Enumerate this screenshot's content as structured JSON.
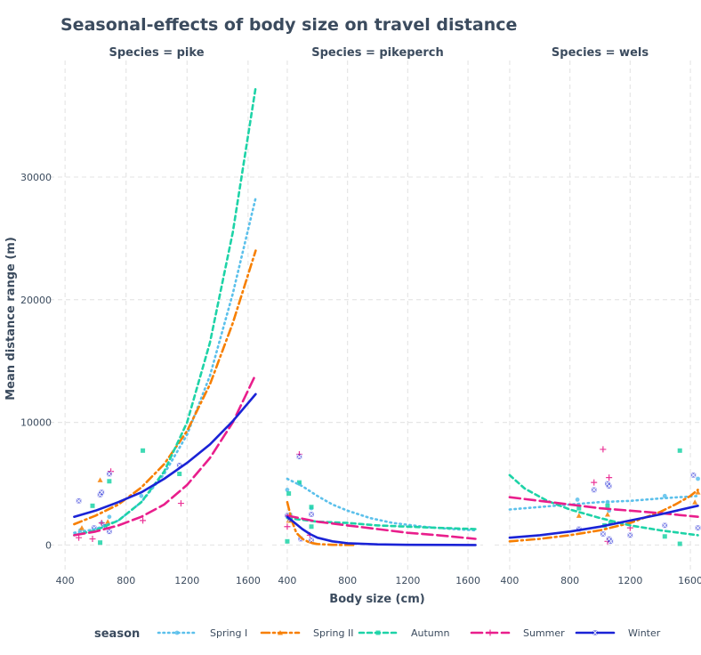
{
  "chart_data": {
    "type": "line",
    "title": "Seasonal-effects of body size on travel distance",
    "xlabel": "Body size (cm)",
    "ylabel": "Mean distance range (m)",
    "xlim": [
      300,
      1700
    ],
    "ylim": [
      -2000,
      39500
    ],
    "xticks": [
      400,
      800,
      1200,
      1600
    ],
    "yticks": [
      0,
      10000,
      20000,
      30000
    ],
    "facet_prefix": "Species = ",
    "legend_title": "season",
    "legend_position": "bottom",
    "seasons": [
      {
        "name": "Spring I",
        "color": "#5bc0eb",
        "dash": "1.5,4",
        "marker": "circle"
      },
      {
        "name": "Spring II",
        "color": "#f77f00",
        "dash": "9,4,2,4",
        "marker": "triangle"
      },
      {
        "name": "Autumn",
        "color": "#1dd3a7",
        "dash": "5,4",
        "marker": "square"
      },
      {
        "name": "Summer",
        "color": "#e91e8c",
        "dash": "12,5",
        "marker": "plus"
      },
      {
        "name": "Winter",
        "color": "#1a23d6",
        "dash": "",
        "marker": "xsquare"
      }
    ],
    "facets": [
      {
        "species": "pike",
        "curves": {
          "Spring I": {
            "x": [
              460,
              600,
              750,
              900,
              1050,
              1200,
              1350,
              1500,
              1650
            ],
            "y": [
              1000,
              1300,
              2000,
              3500,
              5800,
              9000,
              13800,
              20500,
              28300
            ]
          },
          "Spring II": {
            "x": [
              460,
              600,
              750,
              900,
              1050,
              1200,
              1350,
              1500,
              1650
            ],
            "y": [
              1700,
              2400,
              3300,
              4700,
              6600,
              9300,
              13100,
              18100,
              24000
            ]
          },
          "Autumn": {
            "x": [
              460,
              600,
              750,
              900,
              1050,
              1200,
              1350,
              1500,
              1650
            ],
            "y": [
              800,
              1200,
              2000,
              3500,
              6000,
              10000,
              16500,
              25500,
              37300
            ]
          },
          "Summer": {
            "x": [
              460,
              600,
              750,
              900,
              1050,
              1200,
              1350,
              1500,
              1650
            ],
            "y": [
              800,
              1100,
              1600,
              2300,
              3300,
              4900,
              7100,
              10000,
              13900
            ]
          },
          "Winter": {
            "x": [
              460,
              600,
              750,
              900,
              1050,
              1200,
              1350,
              1500,
              1650
            ],
            "y": [
              2300,
              2800,
              3500,
              4300,
              5400,
              6700,
              8200,
              10100,
              12300
            ]
          }
        },
        "points": [
          {
            "season": "Spring I",
            "x": 500,
            "y": 1200
          },
          {
            "season": "Spring I",
            "x": 640,
            "y": 1800
          },
          {
            "season": "Spring I",
            "x": 690,
            "y": 2300
          },
          {
            "season": "Spring I",
            "x": 900,
            "y": 4000
          },
          {
            "season": "Spring II",
            "x": 510,
            "y": 1400
          },
          {
            "season": "Spring II",
            "x": 630,
            "y": 5300
          },
          {
            "season": "Spring II",
            "x": 680,
            "y": 1900
          },
          {
            "season": "Autumn",
            "x": 580,
            "y": 3200
          },
          {
            "season": "Autumn",
            "x": 630,
            "y": 200
          },
          {
            "season": "Autumn",
            "x": 660,
            "y": 1500
          },
          {
            "season": "Autumn",
            "x": 690,
            "y": 5200
          },
          {
            "season": "Autumn",
            "x": 910,
            "y": 7700
          },
          {
            "season": "Autumn",
            "x": 1150,
            "y": 5800
          },
          {
            "season": "Summer",
            "x": 490,
            "y": 600
          },
          {
            "season": "Summer",
            "x": 580,
            "y": 500
          },
          {
            "season": "Summer",
            "x": 640,
            "y": 1800
          },
          {
            "season": "Summer",
            "x": 700,
            "y": 6000
          },
          {
            "season": "Summer",
            "x": 910,
            "y": 2000
          },
          {
            "season": "Summer",
            "x": 1160,
            "y": 3400
          },
          {
            "season": "Winter",
            "x": 490,
            "y": 3600
          },
          {
            "season": "Winter",
            "x": 590,
            "y": 1400
          },
          {
            "season": "Winter",
            "x": 630,
            "y": 4100
          },
          {
            "season": "Winter",
            "x": 640,
            "y": 4300
          },
          {
            "season": "Winter",
            "x": 660,
            "y": 1500
          },
          {
            "season": "Winter",
            "x": 690,
            "y": 5800
          },
          {
            "season": "Winter",
            "x": 690,
            "y": 1100
          },
          {
            "season": "Winter",
            "x": 1150,
            "y": 6500
          }
        ]
      },
      {
        "species": "pikeperch",
        "curves": {
          "Spring I": {
            "x": [
              400,
              500,
              600,
              700,
              800,
              950,
              1100,
              1300,
              1500,
              1650
            ],
            "y": [
              5400,
              4800,
              4000,
              3300,
              2800,
              2200,
              1800,
              1500,
              1300,
              1200
            ]
          },
          "Spring II": {
            "x": [
              400,
              430,
              460,
              500,
              550,
              600,
              700,
              850
            ],
            "y": [
              3500,
              2000,
              1000,
              500,
              200,
              80,
              20,
              0
            ]
          },
          "Autumn": {
            "x": [
              400,
              600,
              800,
              1000,
              1200,
              1400,
              1650
            ],
            "y": [
              2200,
              1900,
              1800,
              1600,
              1500,
              1400,
              1300
            ]
          },
          "Summer": {
            "x": [
              400,
              600,
              800,
              1000,
              1200,
              1400,
              1650
            ],
            "y": [
              2400,
              1900,
              1600,
              1300,
              1000,
              800,
              500
            ]
          },
          "Winter": {
            "x": [
              400,
              450,
              500,
              550,
              600,
              700,
              800,
              1000,
              1200,
              1650
            ],
            "y": [
              2300,
              1800,
              1300,
              900,
              600,
              300,
              150,
              50,
              20,
              0
            ]
          }
        },
        "points": [
          {
            "season": "Spring I",
            "x": 400,
            "y": 4500
          },
          {
            "season": "Spring I",
            "x": 420,
            "y": 2500
          },
          {
            "season": "Spring I",
            "x": 480,
            "y": 5000
          },
          {
            "season": "Spring I",
            "x": 560,
            "y": 3000
          },
          {
            "season": "Spring II",
            "x": 410,
            "y": 2000
          },
          {
            "season": "Spring II",
            "x": 560,
            "y": 300
          },
          {
            "season": "Autumn",
            "x": 400,
            "y": 300
          },
          {
            "season": "Autumn",
            "x": 410,
            "y": 4200
          },
          {
            "season": "Autumn",
            "x": 480,
            "y": 5100
          },
          {
            "season": "Autumn",
            "x": 560,
            "y": 3100
          },
          {
            "season": "Autumn",
            "x": 560,
            "y": 1500
          },
          {
            "season": "Summer",
            "x": 400,
            "y": 1500
          },
          {
            "season": "Summer",
            "x": 480,
            "y": 7400
          },
          {
            "season": "Summer",
            "x": 550,
            "y": 800
          },
          {
            "season": "Winter",
            "x": 400,
            "y": 2400
          },
          {
            "season": "Winter",
            "x": 420,
            "y": 2100
          },
          {
            "season": "Winter",
            "x": 480,
            "y": 7200
          },
          {
            "season": "Winter",
            "x": 490,
            "y": 500
          },
          {
            "season": "Winter",
            "x": 560,
            "y": 2500
          },
          {
            "season": "Winter",
            "x": 560,
            "y": 400
          }
        ]
      },
      {
        "species": "wels",
        "curves": {
          "Spring I": {
            "x": [
              400,
              600,
              800,
              1000,
              1200,
              1400,
              1650
            ],
            "y": [
              2900,
              3100,
              3300,
              3500,
              3600,
              3800,
              4000
            ]
          },
          "Spring II": {
            "x": [
              400,
              600,
              800,
              1000,
              1200,
              1400,
              1500,
              1600,
              1650
            ],
            "y": [
              300,
              500,
              800,
              1200,
              1800,
              2700,
              3300,
              4000,
              4500
            ]
          },
          "Autumn": {
            "x": [
              400,
              500,
              650,
              800,
              1000,
              1200,
              1400,
              1650
            ],
            "y": [
              5700,
              4600,
              3600,
              2900,
              2200,
              1600,
              1200,
              800
            ]
          },
          "Summer": {
            "x": [
              400,
              600,
              800,
              1000,
              1200,
              1400,
              1650
            ],
            "y": [
              3900,
              3600,
              3300,
              3000,
              2800,
              2600,
              2300
            ]
          },
          "Winter": {
            "x": [
              400,
              600,
              800,
              1000,
              1200,
              1400,
              1650
            ],
            "y": [
              600,
              800,
              1100,
              1500,
              2000,
              2500,
              3200
            ]
          }
        },
        "points": [
          {
            "season": "Spring I",
            "x": 850,
            "y": 3700
          },
          {
            "season": "Spring I",
            "x": 1050,
            "y": 3500
          },
          {
            "season": "Spring I",
            "x": 1060,
            "y": 2800
          },
          {
            "season": "Spring I",
            "x": 1430,
            "y": 4000
          },
          {
            "season": "Spring I",
            "x": 1650,
            "y": 5400
          },
          {
            "season": "Spring II",
            "x": 860,
            "y": 2400
          },
          {
            "season": "Spring II",
            "x": 1050,
            "y": 2500
          },
          {
            "season": "Spring II",
            "x": 1650,
            "y": 4300
          },
          {
            "season": "Spring II",
            "x": 1630,
            "y": 3500
          },
          {
            "season": "Autumn",
            "x": 860,
            "y": 3000
          },
          {
            "season": "Autumn",
            "x": 1030,
            "y": 1600
          },
          {
            "season": "Autumn",
            "x": 1050,
            "y": 3200
          },
          {
            "season": "Autumn",
            "x": 1070,
            "y": 1800
          },
          {
            "season": "Autumn",
            "x": 1430,
            "y": 700
          },
          {
            "season": "Autumn",
            "x": 1530,
            "y": 7700
          },
          {
            "season": "Autumn",
            "x": 1530,
            "y": 100
          },
          {
            "season": "Summer",
            "x": 960,
            "y": 5100
          },
          {
            "season": "Summer",
            "x": 1020,
            "y": 7800
          },
          {
            "season": "Summer",
            "x": 1060,
            "y": 5500
          },
          {
            "season": "Summer",
            "x": 1050,
            "y": 300
          },
          {
            "season": "Summer",
            "x": 1200,
            "y": 1400
          },
          {
            "season": "Winter",
            "x": 860,
            "y": 1300
          },
          {
            "season": "Winter",
            "x": 960,
            "y": 4500
          },
          {
            "season": "Winter",
            "x": 1020,
            "y": 900
          },
          {
            "season": "Winter",
            "x": 1050,
            "y": 5000
          },
          {
            "season": "Winter",
            "x": 1060,
            "y": 4800
          },
          {
            "season": "Winter",
            "x": 1070,
            "y": 300
          },
          {
            "season": "Winter",
            "x": 1060,
            "y": 500
          },
          {
            "season": "Winter",
            "x": 1200,
            "y": 800
          },
          {
            "season": "Winter",
            "x": 1430,
            "y": 1600
          },
          {
            "season": "Winter",
            "x": 1620,
            "y": 5700
          },
          {
            "season": "Winter",
            "x": 1650,
            "y": 1400
          }
        ]
      }
    ]
  }
}
